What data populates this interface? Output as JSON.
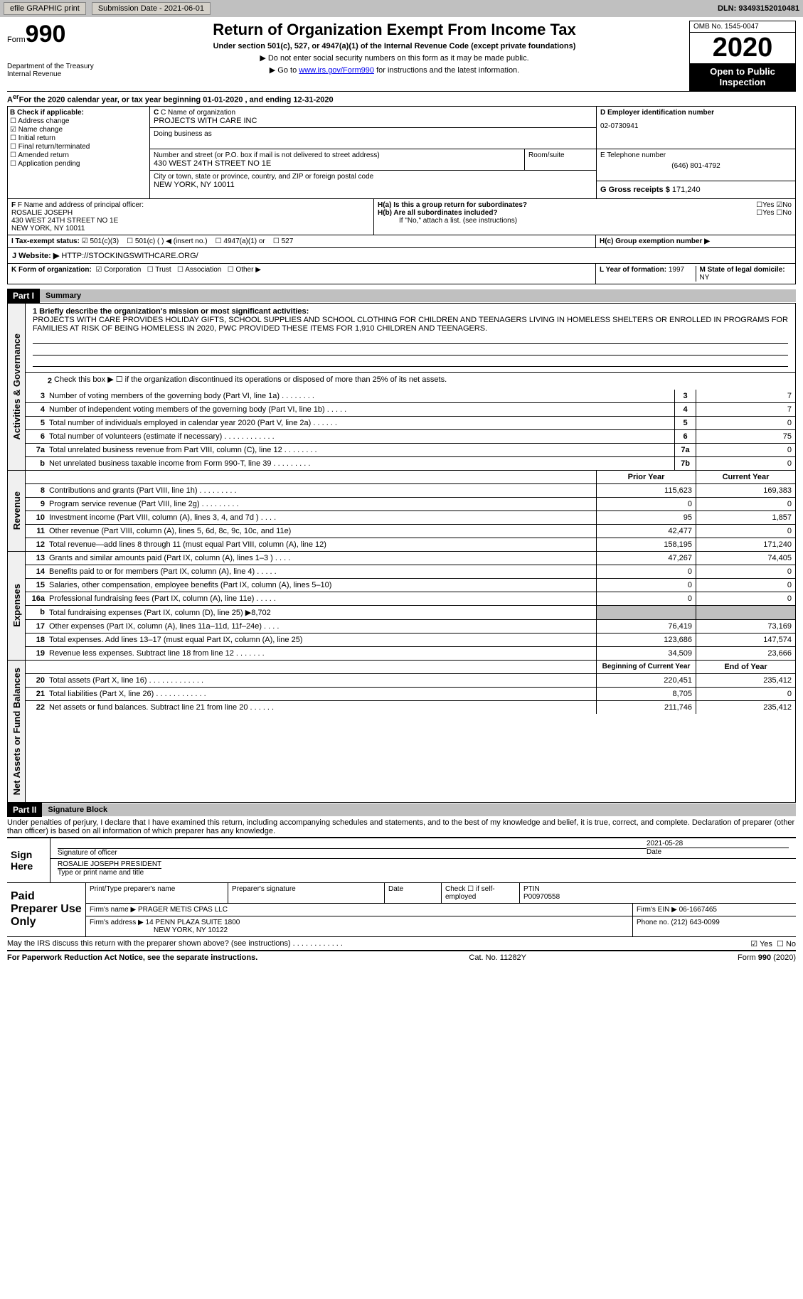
{
  "topbar": {
    "efile": "efile GRAPHIC print",
    "sub_label": "Submission Date - 2021-06-01",
    "dln": "DLN: 93493152010481"
  },
  "header": {
    "form_prefix": "Form",
    "form_num": "990",
    "dept1": "Department of the Treasury",
    "dept2": "Internal Revenue",
    "title": "Return of Organization Exempt From Income Tax",
    "subtitle": "Under section 501(c), 527, or 4947(a)(1) of the Internal Revenue Code (except private foundations)",
    "inst1": "▶ Do not enter social security numbers on this form as it may be made public.",
    "inst2_pre": "▶ Go to ",
    "inst2_link": "www.irs.gov/Form990",
    "inst2_post": " for instructions and the latest information.",
    "omb": "OMB No. 1545-0047",
    "year": "2020",
    "inspection": "Open to Public Inspection"
  },
  "period": "For the 2020 calendar year, or tax year beginning 01-01-2020   , and ending 12-31-2020",
  "sectionB": {
    "label": "B Check if applicable:",
    "items": [
      "Address change",
      "Name change",
      "Initial return",
      "Final return/terminated",
      "Amended return",
      "Application pending"
    ],
    "checked_idx": 1
  },
  "sectionC": {
    "name_label": "C Name of organization",
    "name": "PROJECTS WITH CARE INC",
    "dba_label": "Doing business as",
    "addr_label": "Number and street (or P.O. box if mail is not delivered to street address)",
    "room_label": "Room/suite",
    "addr": "430 WEST 24TH STREET NO 1E",
    "city_label": "City or town, state or province, country, and ZIP or foreign postal code",
    "city": "NEW YORK, NY  10011"
  },
  "sectionD": {
    "label": "D Employer identification number",
    "val": "02-0730941"
  },
  "sectionE": {
    "label": "E Telephone number",
    "val": "(646) 801-4792"
  },
  "sectionG": {
    "label": "G Gross receipts $",
    "val": "171,240"
  },
  "sectionF": {
    "label": "F  Name and address of principal officer:",
    "name": "ROSALIE JOSEPH",
    "addr1": "430 WEST 24TH STREET NO 1E",
    "addr2": "NEW YORK, NY  10011"
  },
  "sectionH": {
    "a_label": "H(a)  Is this a group return for subordinates?",
    "b_label": "H(b)  Are all subordinates included?",
    "b_note": "If \"No,\" attach a list. (see instructions)",
    "c_label": "H(c)  Group exemption number ▶",
    "yes": "Yes",
    "no": "No"
  },
  "taxStatus": {
    "label": "I   Tax-exempt status:",
    "opt1": "501(c)(3)",
    "opt2": "501(c) (  ) ◀ (insert no.)",
    "opt3": "4947(a)(1) or",
    "opt4": "527"
  },
  "website": {
    "label": "J    Website: ▶",
    "val": "HTTP://STOCKINGSWITHCARE.ORG/"
  },
  "korg": {
    "label": "K Form of organization:",
    "opts": [
      "Corporation",
      "Trust",
      "Association",
      "Other ▶"
    ]
  },
  "LM": {
    "l_label": "L Year of formation:",
    "l_val": "1997",
    "m_label": "M State of legal domicile:",
    "m_val": "NY"
  },
  "part1": {
    "num": "Part I",
    "title": "Summary"
  },
  "mission": {
    "label": "1   Briefly describe the organization's mission or most significant activities:",
    "text": "PROJECTS WITH CARE PROVIDES HOLIDAY GIFTS, SCHOOL SUPPLIES AND SCHOOL CLOTHING FOR CHILDREN AND TEENAGERS LIVING IN HOMELESS SHELTERS OR ENROLLED IN PROGRAMS FOR FAMILIES AT RISK OF BEING HOMELESS IN 2020, PWC PROVIDED THESE ITEMS FOR 1,910 CHILDREN AND TEENAGERS."
  },
  "line2": "Check this box ▶ ☐  if the organization discontinued its operations or disposed of more than 25% of its net assets.",
  "vert": {
    "gov": "Activities & Governance",
    "rev": "Revenue",
    "exp": "Expenses",
    "net": "Net Assets or Fund Balances"
  },
  "govLines": [
    {
      "n": "3",
      "d": "Number of voting members of the governing body (Part VI, line 1a)   .   .   .   .   .   .   .   .",
      "b": "3",
      "v": "7"
    },
    {
      "n": "4",
      "d": "Number of independent voting members of the governing body (Part VI, line 1b)   .   .   .   .   .",
      "b": "4",
      "v": "7"
    },
    {
      "n": "5",
      "d": "Total number of individuals employed in calendar year 2020 (Part V, line 2a)   .   .   .   .   .   .",
      "b": "5",
      "v": "0"
    },
    {
      "n": "6",
      "d": "Total number of volunteers (estimate if necessary)   .   .   .   .   .   .   .   .   .   .   .   .",
      "b": "6",
      "v": "75"
    },
    {
      "n": "7a",
      "d": "Total unrelated business revenue from Part VIII, column (C), line 12   .   .   .   .   .   .   .   .",
      "b": "7a",
      "v": "0"
    },
    {
      "n": "b",
      "d": "Net unrelated business taxable income from Form 990-T, line 39   .   .   .   .   .   .   .   .   .",
      "b": "7b",
      "v": "0"
    }
  ],
  "colHeaders": {
    "prior": "Prior Year",
    "current": "Current Year"
  },
  "revLines": [
    {
      "n": "8",
      "d": "Contributions and grants (Part VIII, line 1h)   .   .   .   .   .   .   .   .   .",
      "p": "115,623",
      "c": "169,383"
    },
    {
      "n": "9",
      "d": "Program service revenue (Part VIII, line 2g)   .   .   .   .   .   .   .   .   .",
      "p": "0",
      "c": "0"
    },
    {
      "n": "10",
      "d": "Investment income (Part VIII, column (A), lines 3, 4, and 7d )   .   .   .   .",
      "p": "95",
      "c": "1,857"
    },
    {
      "n": "11",
      "d": "Other revenue (Part VIII, column (A), lines 5, 6d, 8c, 9c, 10c, and 11e)",
      "p": "42,477",
      "c": "0"
    },
    {
      "n": "12",
      "d": "Total revenue—add lines 8 through 11 (must equal Part VIII, column (A), line 12)",
      "p": "158,195",
      "c": "171,240"
    }
  ],
  "expLines": [
    {
      "n": "13",
      "d": "Grants and similar amounts paid (Part IX, column (A), lines 1–3 ) .   .   .   .",
      "p": "47,267",
      "c": "74,405"
    },
    {
      "n": "14",
      "d": "Benefits paid to or for members (Part IX, column (A), line 4)  .   .   .   .   .",
      "p": "0",
      "c": "0"
    },
    {
      "n": "15",
      "d": "Salaries, other compensation, employee benefits (Part IX, column (A), lines 5–10)",
      "p": "0",
      "c": "0"
    },
    {
      "n": "16a",
      "d": "Professional fundraising fees (Part IX, column (A), line 11e)   .   .   .   .   .",
      "p": "0",
      "c": "0"
    },
    {
      "n": "b",
      "d": "Total fundraising expenses (Part IX, column (D), line 25) ▶8,702",
      "p": "",
      "c": "",
      "shaded": true
    },
    {
      "n": "17",
      "d": "Other expenses (Part IX, column (A), lines 11a–11d, 11f–24e)   .   .   .   .",
      "p": "76,419",
      "c": "73,169"
    },
    {
      "n": "18",
      "d": "Total expenses. Add lines 13–17 (must equal Part IX, column (A), line 25)",
      "p": "123,686",
      "c": "147,574"
    },
    {
      "n": "19",
      "d": "Revenue less expenses. Subtract line 18 from line 12   .   .   .   .   .   .   .",
      "p": "34,509",
      "c": "23,666"
    }
  ],
  "netHeaders": {
    "beg": "Beginning of Current Year",
    "end": "End of Year"
  },
  "netLines": [
    {
      "n": "20",
      "d": "Total assets (Part X, line 16)  .   .   .   .   .   .   .   .   .   .   .   .   .",
      "p": "220,451",
      "c": "235,412"
    },
    {
      "n": "21",
      "d": "Total liabilities (Part X, line 26)  .   .   .   .   .   .   .   .   .   .   .   .",
      "p": "8,705",
      "c": "0"
    },
    {
      "n": "22",
      "d": "Net assets or fund balances. Subtract line 21 from line 20  .   .   .   .   .   .",
      "p": "211,746",
      "c": "235,412"
    }
  ],
  "part2": {
    "num": "Part II",
    "title": "Signature Block"
  },
  "perjury": "Under penalties of perjury, I declare that I have examined this return, including accompanying schedules and statements, and to the best of my knowledge and belief, it is true, correct, and complete. Declaration of preparer (other than officer) is based on all information of which preparer has any knowledge.",
  "sign": {
    "label": "Sign Here",
    "sig_label": "Signature of officer",
    "date": "2021-05-28",
    "date_label": "Date",
    "name": "ROSALIE JOSEPH  PRESIDENT",
    "name_label": "Type or print name and title"
  },
  "prep": {
    "label": "Paid Preparer Use Only",
    "h1": "Print/Type preparer's name",
    "h2": "Preparer's signature",
    "h3": "Date",
    "h4_pre": "Check",
    "h4_post": "if self-employed",
    "ptin_label": "PTIN",
    "ptin": "P00970558",
    "firm_label": "Firm's name   ▶",
    "firm": "PRAGER METIS CPAS LLC",
    "ein_label": "Firm's EIN ▶",
    "ein": "06-1667465",
    "addr_label": "Firm's address ▶",
    "addr1": "14 PENN PLAZA SUITE 1800",
    "addr2": "NEW YORK, NY  10122",
    "phone_label": "Phone no.",
    "phone": "(212) 643-0099"
  },
  "discuss": "May the IRS discuss this return with the preparer shown above? (see instructions)   .   .   .   .   .   .   .   .   .   .   .   .",
  "footer": {
    "pra": "For Paperwork Reduction Act Notice, see the separate instructions.",
    "cat": "Cat. No. 11282Y",
    "form": "Form 990 (2020)"
  }
}
